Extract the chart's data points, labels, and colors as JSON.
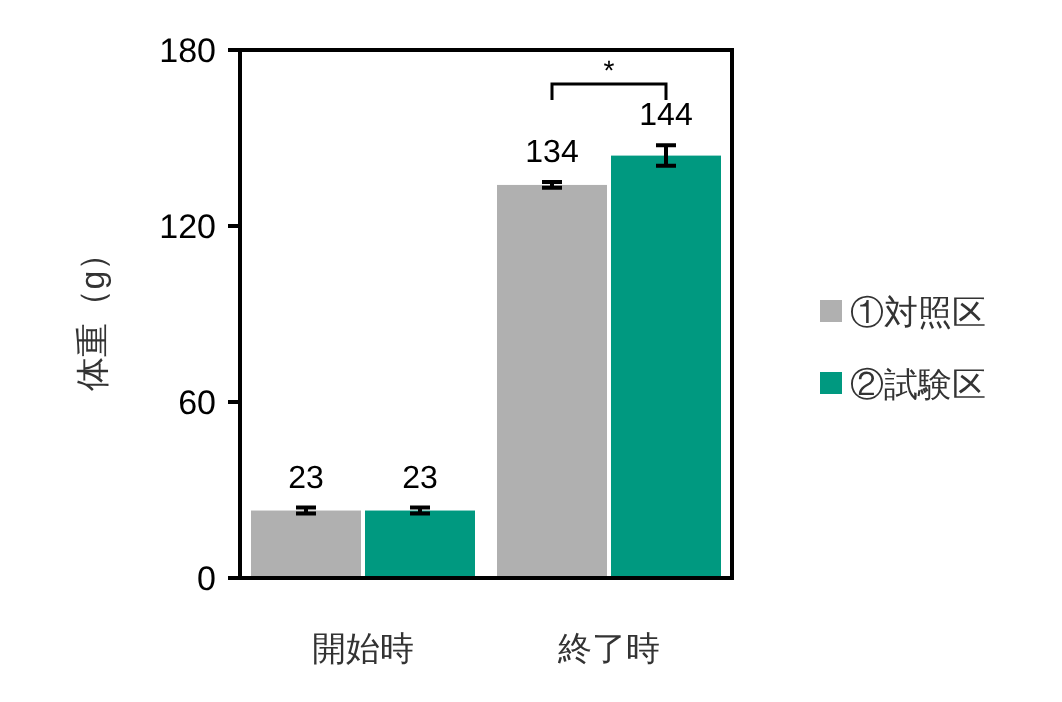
{
  "chart_data": {
    "type": "bar",
    "ylabel": "体重（g）",
    "categories": [
      "開始時",
      "終了時"
    ],
    "series": [
      {
        "name": "①対照区",
        "color": "#b0b0b0",
        "values": [
          23,
          134
        ],
        "errors": [
          1,
          1
        ]
      },
      {
        "name": "②試験区",
        "color": "#009980",
        "values": [
          23,
          144
        ],
        "errors": [
          1,
          3.5
        ]
      }
    ],
    "ylim": [
      0,
      180
    ],
    "yticks": [
      0,
      60,
      120,
      180
    ],
    "data_labels": true,
    "legend": "right",
    "grid": false,
    "annotations": [
      "*"
    ]
  }
}
